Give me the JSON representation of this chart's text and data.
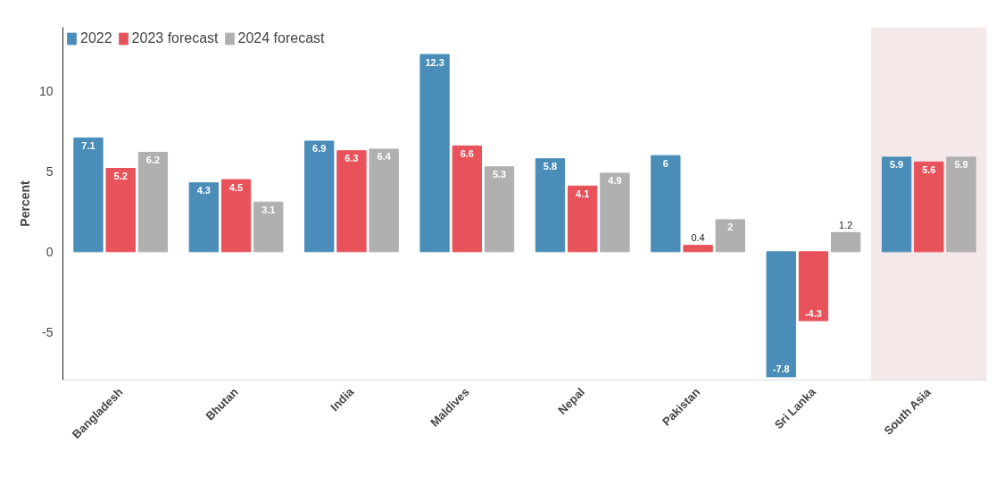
{
  "chart_data": {
    "type": "bar",
    "ylabel": "Percent",
    "categories": [
      "Bangladesh",
      "Bhutan",
      "India",
      "Maldives",
      "Nepal",
      "Pakistan",
      "Sri Lanka",
      "South Asia"
    ],
    "series": [
      {
        "name": "2022",
        "color": "#4a8db8",
        "values": [
          7.1,
          4.3,
          6.9,
          12.3,
          5.8,
          6,
          -7.8,
          5.9
        ]
      },
      {
        "name": "2023 forecast",
        "color": "#e8525a",
        "values": [
          5.2,
          4.5,
          6.3,
          6.6,
          4.1,
          0.4,
          -4.3,
          5.6
        ]
      },
      {
        "name": "2024 forecast",
        "color": "#b0b0b0",
        "values": [
          6.2,
          3.1,
          6.4,
          5.3,
          4.9,
          2,
          1.2,
          5.9
        ]
      }
    ],
    "ylim": [
      -8,
      14
    ],
    "yticks": [
      -5,
      0,
      5,
      10
    ],
    "bands": [
      {
        "axis": "x",
        "from": "South Asia",
        "to": "South Asia",
        "color": "#f5e8e8"
      }
    ],
    "data_labels": true,
    "grid": false,
    "legend": "top left"
  }
}
